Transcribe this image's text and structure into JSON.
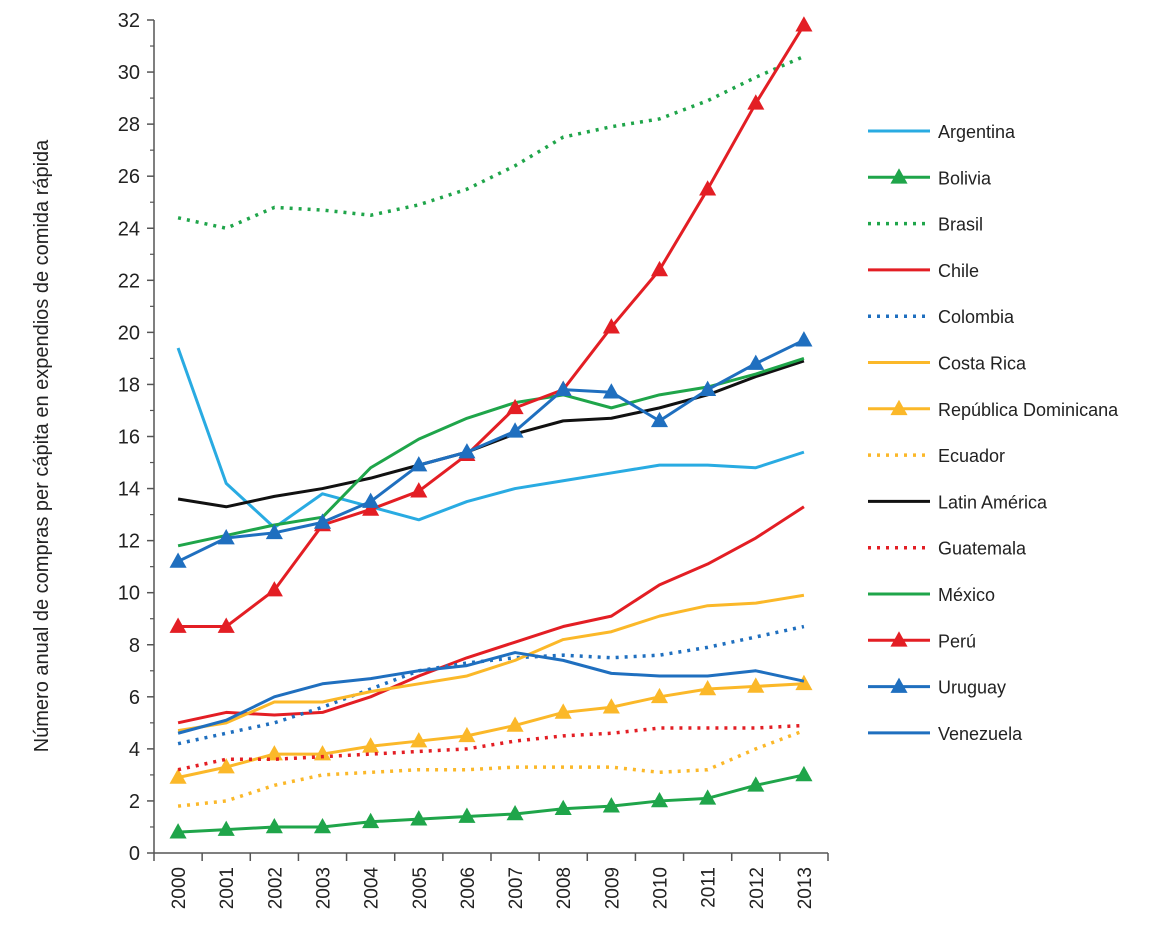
{
  "chart_data": {
    "type": "line",
    "ylabel": "Número anual de compras per cápita en expendios de comida rápida",
    "xlabel": "",
    "ylim": [
      0,
      32
    ],
    "yticks": [
      "0",
      "2",
      "4",
      "6",
      "8",
      "10",
      "12",
      "14",
      "16",
      "18",
      "20",
      "22",
      "24",
      "26",
      "28",
      "30",
      "32"
    ],
    "x": [
      "2000",
      "2001",
      "2002",
      "2003",
      "2004",
      "2005",
      "2006",
      "2007",
      "2008",
      "2009",
      "2010",
      "2011",
      "2012",
      "2013"
    ],
    "legend_position": "right",
    "grid": false,
    "series": [
      {
        "name": "Argentina",
        "color": "#29ABE2",
        "dash": "solid",
        "marker": "none",
        "values": [
          19.4,
          14.2,
          12.5,
          13.8,
          13.3,
          12.8,
          13.5,
          14.0,
          14.3,
          14.6,
          14.9,
          14.9,
          14.8,
          15.4
        ]
      },
      {
        "name": "Bolivia",
        "color": "#1FA54A",
        "dash": "solid",
        "marker": "triangle",
        "values": [
          0.8,
          0.9,
          1.0,
          1.0,
          1.2,
          1.3,
          1.4,
          1.5,
          1.7,
          1.8,
          2.0,
          2.1,
          2.6,
          3.0
        ]
      },
      {
        "name": "Brasil",
        "color": "#1FA54A",
        "dash": "dotted",
        "marker": "none",
        "values": [
          24.4,
          24.0,
          24.8,
          24.7,
          24.5,
          24.9,
          25.5,
          26.4,
          27.5,
          27.9,
          28.2,
          28.9,
          29.8,
          30.6
        ]
      },
      {
        "name": "Chile",
        "color": "#E31E24",
        "dash": "solid",
        "marker": "none",
        "values": [
          5.0,
          5.4,
          5.3,
          5.4,
          6.0,
          6.8,
          7.5,
          8.1,
          8.7,
          9.1,
          10.3,
          11.1,
          12.1,
          13.3
        ]
      },
      {
        "name": "Colombia",
        "color": "#1F6FBF",
        "dash": "dotted",
        "marker": "none",
        "values": [
          4.2,
          4.6,
          5.0,
          5.6,
          6.3,
          7.0,
          7.3,
          7.5,
          7.6,
          7.5,
          7.6,
          7.9,
          8.3,
          8.7
        ]
      },
      {
        "name": "Costa Rica",
        "color": "#FBB829",
        "dash": "solid",
        "marker": "none",
        "values": [
          4.7,
          5.0,
          5.8,
          5.8,
          6.2,
          6.5,
          6.8,
          7.4,
          8.2,
          8.5,
          9.1,
          9.5,
          9.6,
          9.9
        ]
      },
      {
        "name": "República Dominicana",
        "color": "#FBB829",
        "dash": "solid",
        "marker": "triangle",
        "values": [
          2.9,
          3.3,
          3.8,
          3.8,
          4.1,
          4.3,
          4.5,
          4.9,
          5.4,
          5.6,
          6.0,
          6.3,
          6.4,
          6.5
        ]
      },
      {
        "name": "Ecuador",
        "color": "#FBB829",
        "dash": "dotted",
        "marker": "none",
        "values": [
          1.8,
          2.0,
          2.6,
          3.0,
          3.1,
          3.2,
          3.2,
          3.3,
          3.3,
          3.3,
          3.1,
          3.2,
          4.0,
          4.7
        ]
      },
      {
        "name": "Latin América",
        "color": "#111111",
        "dash": "solid",
        "marker": "none",
        "values": [
          13.6,
          13.3,
          13.7,
          14.0,
          14.4,
          14.9,
          15.4,
          16.1,
          16.6,
          16.7,
          17.1,
          17.6,
          18.3,
          18.9
        ]
      },
      {
        "name": "Guatemala",
        "color": "#E31E24",
        "dash": "dotted",
        "marker": "none",
        "values": [
          3.2,
          3.6,
          3.6,
          3.7,
          3.8,
          3.9,
          4.0,
          4.3,
          4.5,
          4.6,
          4.8,
          4.8,
          4.8,
          4.9
        ]
      },
      {
        "name": "México",
        "color": "#1FA54A",
        "dash": "solid",
        "marker": "none",
        "values": [
          11.8,
          12.2,
          12.6,
          12.9,
          14.8,
          15.9,
          16.7,
          17.3,
          17.6,
          17.1,
          17.6,
          17.9,
          18.4,
          19.0
        ]
      },
      {
        "name": "Perú",
        "color": "#E31E24",
        "dash": "solid",
        "marker": "triangle",
        "values": [
          8.7,
          8.7,
          10.1,
          12.6,
          13.2,
          13.9,
          15.3,
          17.1,
          17.8,
          20.2,
          22.4,
          25.5,
          28.8,
          31.8
        ]
      },
      {
        "name": "Uruguay",
        "color": "#1F6FBF",
        "dash": "solid",
        "marker": "triangle",
        "values": [
          11.2,
          12.1,
          12.3,
          12.7,
          13.5,
          14.9,
          15.4,
          16.2,
          17.8,
          17.7,
          16.6,
          17.8,
          18.8,
          19.7
        ]
      },
      {
        "name": "Venezuela",
        "color": "#1F6FBF",
        "dash": "solid",
        "marker": "none",
        "values": [
          4.6,
          5.1,
          6.0,
          6.5,
          6.7,
          7.0,
          7.2,
          7.7,
          7.4,
          6.9,
          6.8,
          6.8,
          7.0,
          6.6
        ]
      }
    ]
  }
}
